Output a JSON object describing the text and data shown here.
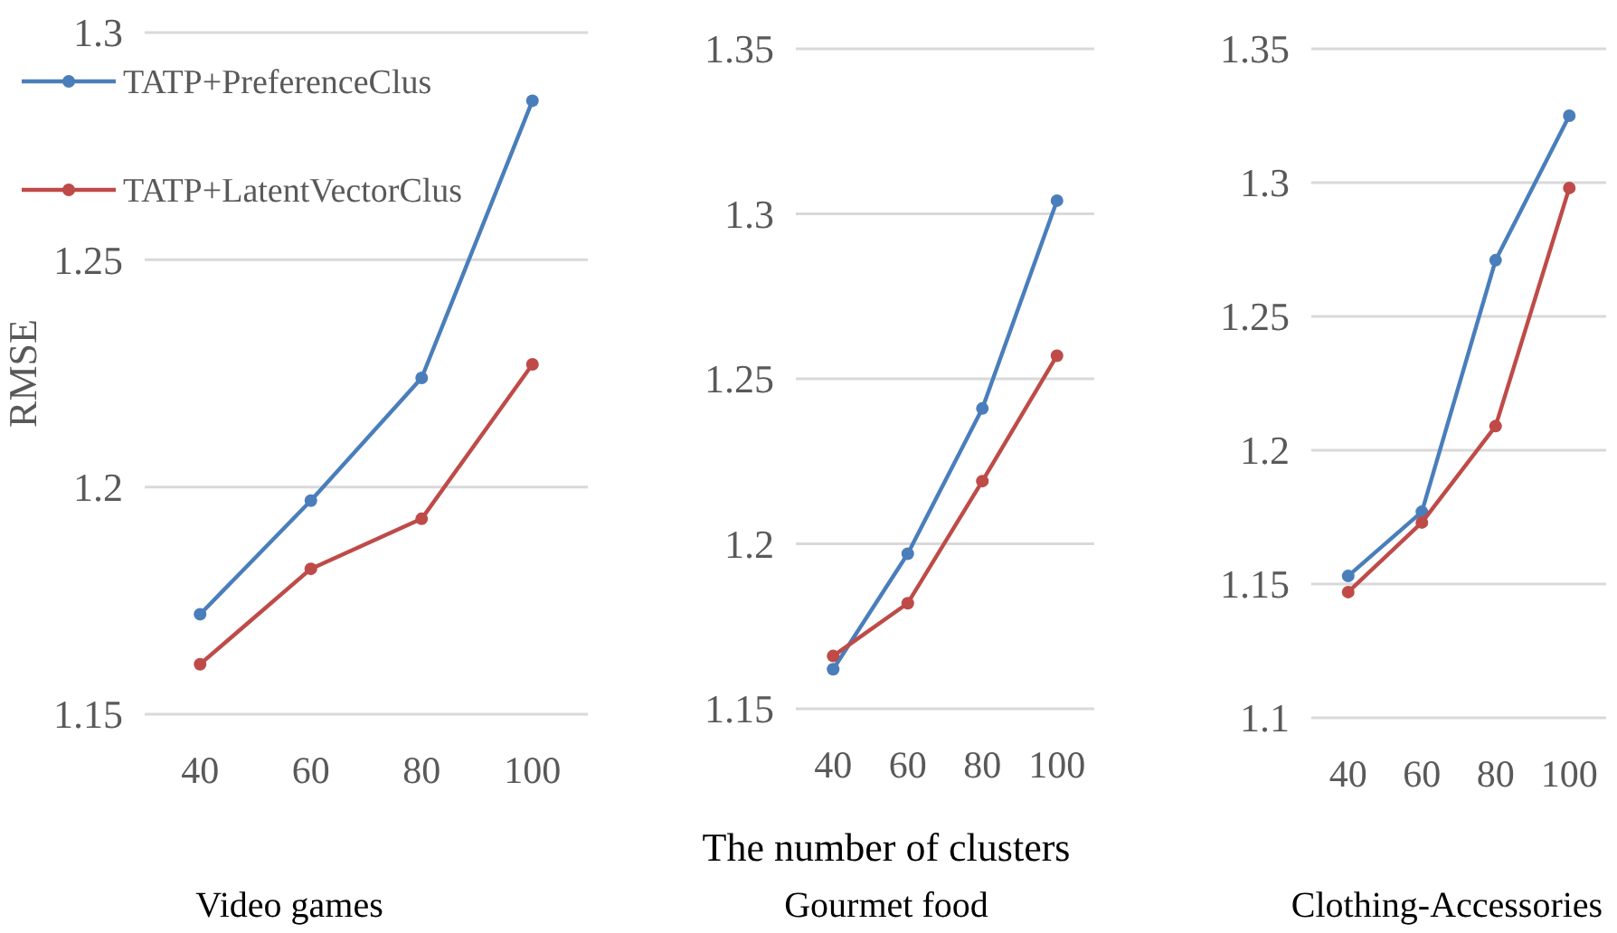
{
  "chart_data": [
    {
      "type": "line",
      "title": "Video games",
      "ylabel": "RMSE",
      "categories": [
        "40",
        "60",
        "80",
        "100"
      ],
      "ylim": [
        1.15,
        1.3
      ],
      "yticks": [
        1.15,
        1.2,
        1.25,
        1.3
      ],
      "grid": "y",
      "marker": "circle",
      "legend": "top left",
      "series": [
        {
          "name": "TATP+PreferenceClus",
          "color": "#4a7ebb",
          "values": [
            1.172,
            1.197,
            1.224,
            1.285
          ]
        },
        {
          "name": "TATP+LatentVectorClus",
          "color": "#be4b48",
          "values": [
            1.161,
            1.182,
            1.193,
            1.227
          ]
        }
      ]
    },
    {
      "type": "line",
      "title": "Gourmet food",
      "xlabel": "The number of clusters",
      "categories": [
        "40",
        "60",
        "80",
        "100"
      ],
      "ylim": [
        1.15,
        1.35
      ],
      "yticks": [
        1.15,
        1.2,
        1.25,
        1.3,
        1.35
      ],
      "grid": "y",
      "marker": "circle",
      "series": [
        {
          "color": "#4a7ebb",
          "values": [
            1.162,
            1.197,
            1.241,
            1.304
          ]
        },
        {
          "color": "#be4b48",
          "values": [
            1.166,
            1.182,
            1.219,
            1.257
          ]
        }
      ]
    },
    {
      "type": "line",
      "title": "Clothing-Accessories",
      "categories": [
        "40",
        "60",
        "80",
        "100"
      ],
      "ylim": [
        1.1,
        1.35
      ],
      "yticks": [
        1.1,
        1.15,
        1.2,
        1.25,
        1.3,
        1.35
      ],
      "grid": "y",
      "marker": "circle",
      "series": [
        {
          "color": "#4a7ebb",
          "values": [
            1.153,
            1.177,
            1.271,
            1.325
          ]
        },
        {
          "color": "#be4b48",
          "values": [
            1.147,
            1.173,
            1.209,
            1.298
          ]
        }
      ]
    }
  ]
}
